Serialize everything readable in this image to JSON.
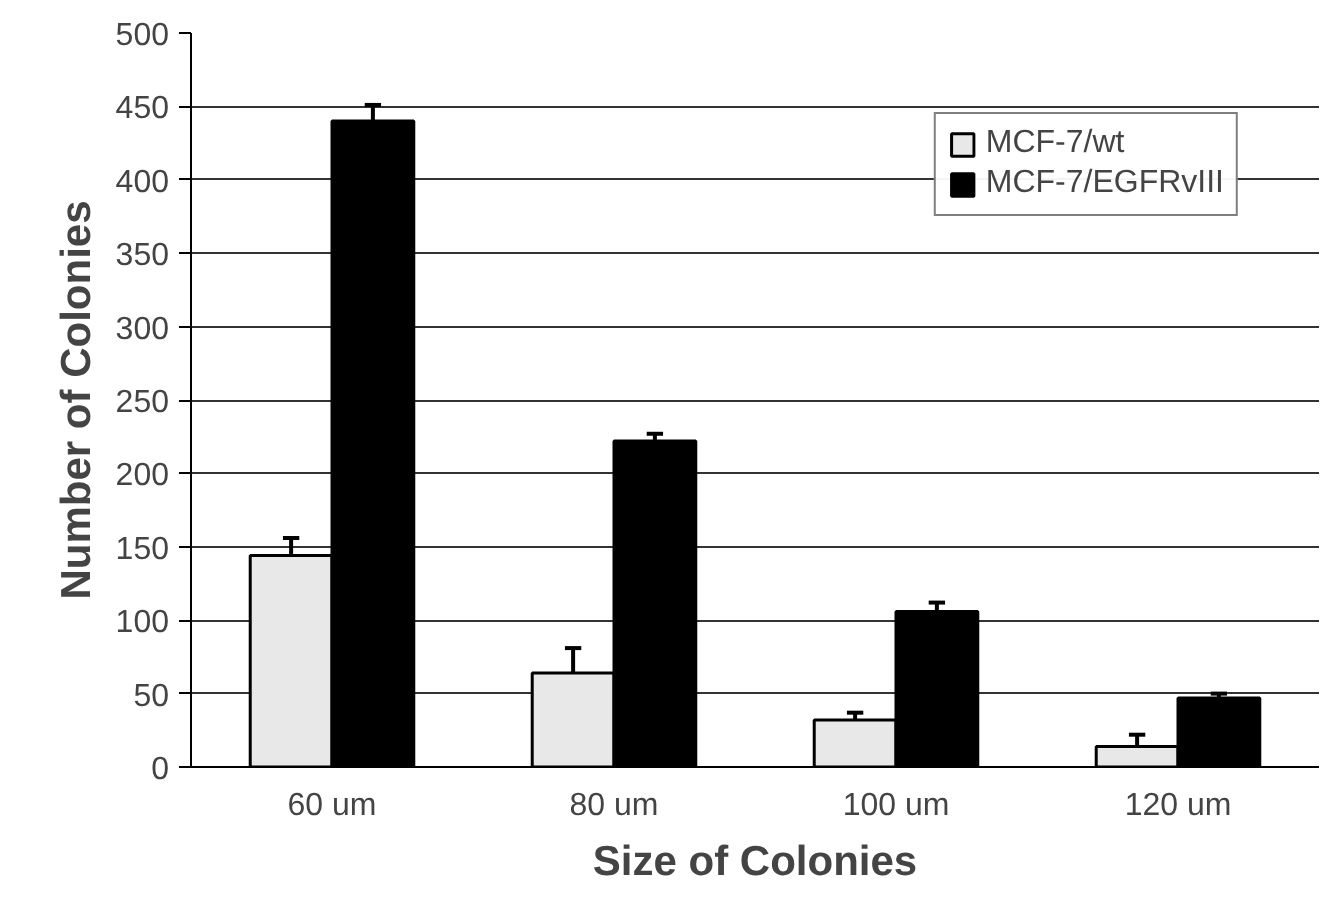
{
  "chart_data": {
    "type": "bar",
    "xlabel": "Size of Colonies",
    "ylabel": "Number of Colonies",
    "categories": [
      "60 um",
      "80 um",
      "100 um",
      "120 um"
    ],
    "series": [
      {
        "name": "MCF-7/wt",
        "color": "#e8e8e8",
        "values": [
          144,
          64,
          32,
          14
        ],
        "errors": [
          [
            144,
            156
          ],
          [
            64,
            81
          ],
          [
            32,
            37
          ],
          [
            14,
            22
          ]
        ]
      },
      {
        "name": "MCF-7/EGFRvIII",
        "color": "#000000",
        "values": [
          440,
          222,
          106,
          47
        ],
        "errors": [
          [
            440,
            451
          ],
          [
            222,
            227
          ],
          [
            106,
            112
          ],
          [
            47,
            50
          ]
        ]
      }
    ],
    "ylim": [
      0,
      500
    ],
    "yticks": [
      0,
      50,
      100,
      150,
      200,
      250,
      300,
      350,
      400,
      450,
      500
    ],
    "grid": "y",
    "legend": "top right"
  }
}
